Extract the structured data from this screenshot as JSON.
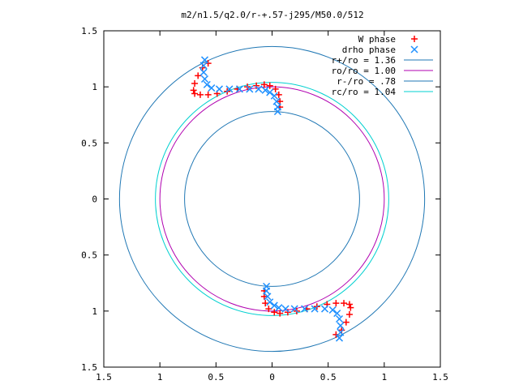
{
  "chart_data": {
    "type": "scatter",
    "title": "m2/n1.5/q2.0/r-+.57-j295/M50.0/512",
    "xlabel": "",
    "ylabel": "",
    "xlim": [
      -1.5,
      1.5
    ],
    "ylim": [
      -1.5,
      1.5
    ],
    "x_ticks": [
      -1.5,
      -1,
      -0.5,
      0,
      0.5,
      1,
      1.5
    ],
    "x_tick_labels": [
      "1.5",
      "1",
      "0.5",
      "0",
      "0.5",
      "1",
      "1.5"
    ],
    "y_ticks": [
      1.5,
      1,
      0.5,
      0,
      -0.5,
      -1,
      -1.5
    ],
    "y_tick_labels": [
      "1.5",
      "1",
      "0.5",
      "0",
      "0.5",
      "1",
      "1.5"
    ],
    "grid": false,
    "legend_position": "top-right",
    "circles": [
      {
        "name": "r+/ro = 1.36",
        "radius": 1.36,
        "color": "#1f77b4"
      },
      {
        "name": "ro/ro = 1.00",
        "radius": 1.0,
        "color": "#b000b0"
      },
      {
        "name": "r-/ro = .78",
        "radius": 0.78,
        "color": "#1f77b4"
      },
      {
        "name": "rc/ro = 1.04",
        "radius": 1.04,
        "color": "#00d0d0"
      }
    ],
    "series": [
      {
        "name": "W phase",
        "marker": "+",
        "color": "#ff0000",
        "points": [
          [
            -0.57,
            1.21
          ],
          [
            -0.62,
            1.17
          ],
          [
            -0.66,
            1.1
          ],
          [
            -0.69,
            1.03
          ],
          [
            -0.7,
            0.97
          ],
          [
            -0.69,
            0.94
          ],
          [
            -0.64,
            0.93
          ],
          [
            -0.57,
            0.93
          ],
          [
            -0.49,
            0.94
          ],
          [
            -0.4,
            0.96
          ],
          [
            -0.31,
            0.98
          ],
          [
            -0.22,
            1.0
          ],
          [
            -0.14,
            1.01
          ],
          [
            -0.07,
            1.02
          ],
          [
            -0.02,
            1.01
          ],
          [
            0.03,
            0.98
          ],
          [
            0.06,
            0.93
          ],
          [
            0.07,
            0.87
          ],
          [
            0.07,
            0.82
          ],
          [
            0.57,
            -1.21
          ],
          [
            0.62,
            -1.17
          ],
          [
            0.66,
            -1.1
          ],
          [
            0.69,
            -1.03
          ],
          [
            0.7,
            -0.97
          ],
          [
            0.69,
            -0.94
          ],
          [
            0.64,
            -0.93
          ],
          [
            0.57,
            -0.93
          ],
          [
            0.49,
            -0.94
          ],
          [
            0.4,
            -0.96
          ],
          [
            0.31,
            -0.98
          ],
          [
            0.22,
            -1.0
          ],
          [
            0.14,
            -1.01
          ],
          [
            0.07,
            -1.02
          ],
          [
            0.02,
            -1.01
          ],
          [
            -0.03,
            -0.98
          ],
          [
            -0.06,
            -0.93
          ],
          [
            -0.07,
            -0.87
          ],
          [
            -0.07,
            -0.82
          ]
        ]
      },
      {
        "name": "drho phase",
        "marker": "x",
        "color": "#1e90ff",
        "points": [
          [
            -0.6,
            1.24
          ],
          [
            -0.61,
            1.19
          ],
          [
            -0.61,
            1.13
          ],
          [
            -0.6,
            1.07
          ],
          [
            -0.58,
            1.02
          ],
          [
            -0.54,
            0.99
          ],
          [
            -0.47,
            0.98
          ],
          [
            -0.38,
            0.98
          ],
          [
            -0.29,
            0.98
          ],
          [
            -0.2,
            0.98
          ],
          [
            -0.12,
            0.98
          ],
          [
            -0.06,
            0.97
          ],
          [
            -0.02,
            0.95
          ],
          [
            0.02,
            0.92
          ],
          [
            0.04,
            0.87
          ],
          [
            0.05,
            0.82
          ],
          [
            0.05,
            0.78
          ],
          [
            0.6,
            -1.24
          ],
          [
            0.61,
            -1.19
          ],
          [
            0.61,
            -1.13
          ],
          [
            0.6,
            -1.07
          ],
          [
            0.58,
            -1.02
          ],
          [
            0.54,
            -0.99
          ],
          [
            0.47,
            -0.98
          ],
          [
            0.38,
            -0.98
          ],
          [
            0.29,
            -0.98
          ],
          [
            0.2,
            -0.98
          ],
          [
            0.12,
            -0.98
          ],
          [
            0.06,
            -0.97
          ],
          [
            0.02,
            -0.95
          ],
          [
            -0.02,
            -0.92
          ],
          [
            -0.04,
            -0.87
          ],
          [
            -0.05,
            -0.82
          ],
          [
            -0.05,
            -0.78
          ]
        ]
      }
    ]
  }
}
